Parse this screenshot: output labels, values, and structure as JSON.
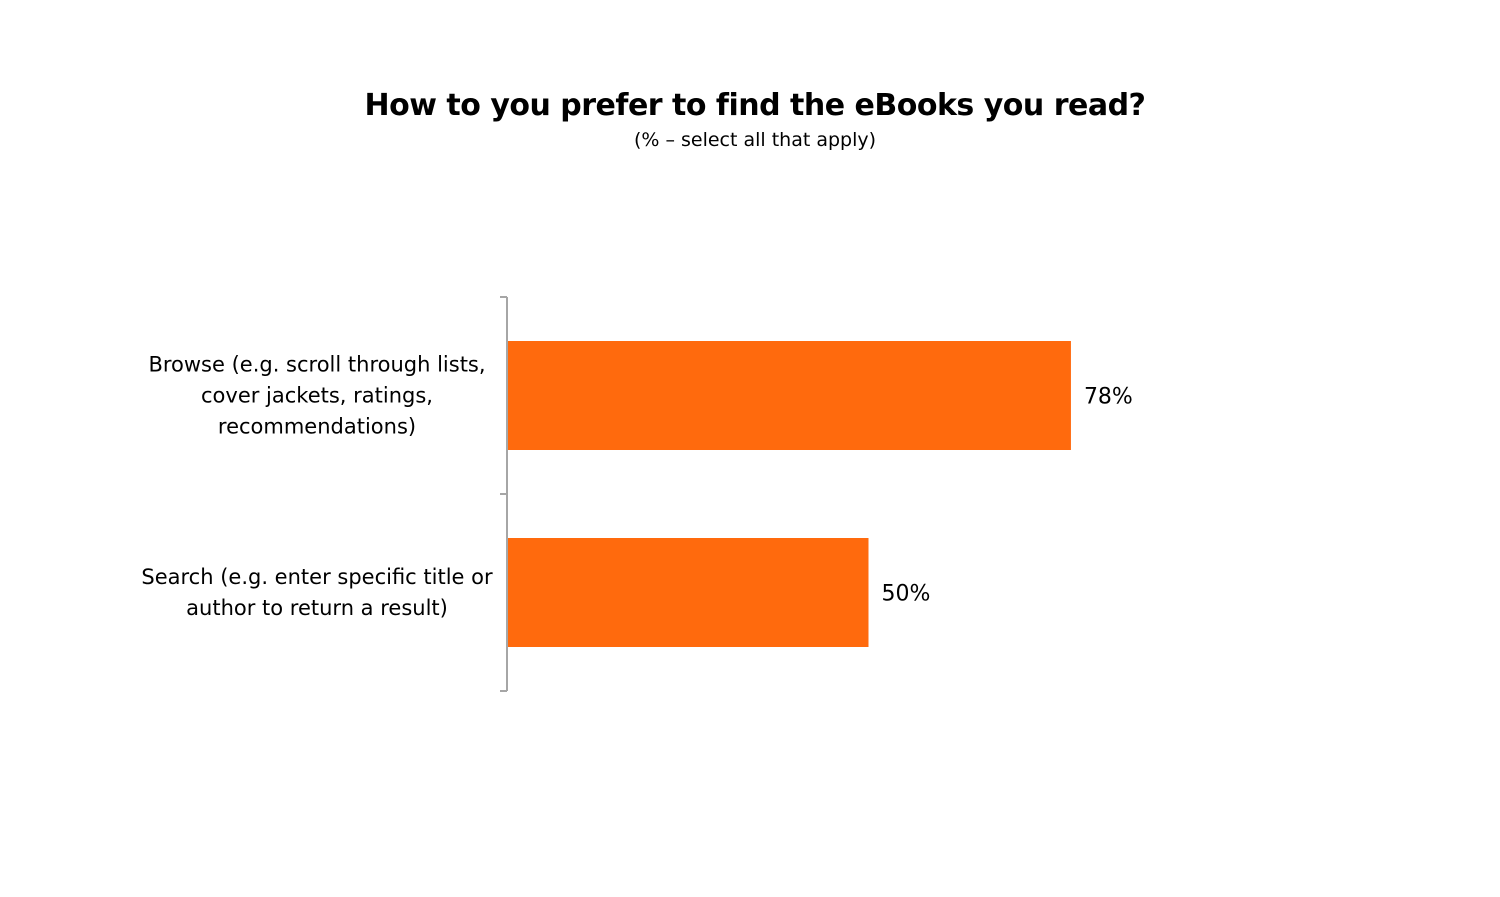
{
  "chart_data": {
    "type": "bar",
    "orientation": "horizontal",
    "title": "How to you prefer to find the eBooks you read?",
    "subtitle": "(% – select all that apply)",
    "categories": [
      [
        "Browse (e.g. scroll through lists,",
        "cover jackets, ratings,",
        "recommendations)"
      ],
      [
        "Search (e.g. enter specific title or",
        "author to return a result)"
      ]
    ],
    "values": [
      78,
      50
    ],
    "value_labels": [
      "78%",
      "50%"
    ],
    "xlim": [
      0,
      100
    ],
    "bar_color": "#FF6A0D",
    "axis_color": "#A6A6A6",
    "grid": false,
    "legend": "none"
  }
}
